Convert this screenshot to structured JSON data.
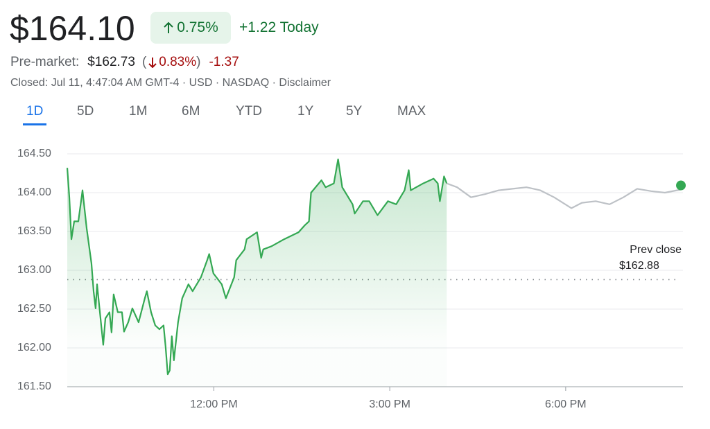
{
  "header": {
    "price": "$164.10",
    "change_pct": "0.75%",
    "change_today": "+1.22 Today",
    "premarket_label": "Pre-market:",
    "premarket_price": "$162.73",
    "premarket_pct": "0.83%",
    "premarket_change": "-1.37",
    "status": "Closed: Jul 11, 4:47:04 AM GMT-4 · USD · NASDAQ · Disclaimer"
  },
  "tabs": [
    "1D",
    "5D",
    "1M",
    "6M",
    "YTD",
    "1Y",
    "5Y",
    "MAX"
  ],
  "chart_data": {
    "type": "line",
    "series": [
      {
        "color": "#34a853",
        "x": [
          9.5,
          9.535,
          9.571,
          9.618,
          9.689,
          9.76,
          9.831,
          9.913,
          9.949,
          9.984,
          10.008,
          10.079,
          10.114,
          10.15,
          10.22,
          10.256,
          10.291,
          10.362,
          10.433,
          10.469,
          10.539,
          10.61,
          10.717,
          10.823,
          10.858,
          10.929,
          11.0,
          11.071,
          11.142,
          11.177,
          11.213,
          11.248,
          11.283,
          11.319,
          11.39,
          11.461,
          11.567,
          11.638,
          11.78,
          11.886,
          11.921,
          11.992,
          12.134,
          12.205,
          12.346,
          12.382,
          12.524,
          12.559,
          12.736,
          12.807,
          12.843,
          12.984,
          13.197,
          13.445,
          13.551,
          13.622,
          13.657,
          13.835,
          13.906,
          14.047,
          14.118,
          14.189,
          14.366,
          14.402,
          14.543,
          14.65,
          14.791,
          14.969,
          15.11,
          15.252,
          15.323,
          15.358,
          15.571,
          15.748,
          15.819,
          15.854,
          15.925,
          15.972
        ],
        "values": [
          164.32,
          163.94,
          163.4,
          163.63,
          163.63,
          164.03,
          163.54,
          163.09,
          162.73,
          162.51,
          162.82,
          162.29,
          162.04,
          162.38,
          162.46,
          162.2,
          162.69,
          162.46,
          162.46,
          162.21,
          162.33,
          162.51,
          162.33,
          162.64,
          162.73,
          162.46,
          162.29,
          162.24,
          162.29,
          162.02,
          161.66,
          161.71,
          162.15,
          161.84,
          162.33,
          162.64,
          162.82,
          162.73,
          162.91,
          163.13,
          163.21,
          162.96,
          162.82,
          162.64,
          162.91,
          163.13,
          163.27,
          163.4,
          163.49,
          163.16,
          163.27,
          163.31,
          163.4,
          163.49,
          163.58,
          163.63,
          164.0,
          164.16,
          164.07,
          164.12,
          164.43,
          164.07,
          163.85,
          163.73,
          163.89,
          163.89,
          163.71,
          163.89,
          163.85,
          164.03,
          164.29,
          164.03,
          164.12,
          164.18,
          164.12,
          163.89,
          164.21,
          164.12
        ]
      },
      {
        "color": "#bdc1c6",
        "x": [
          15.972,
          16.149,
          16.385,
          16.622,
          16.858,
          17.094,
          17.331,
          17.567,
          17.803,
          18.099,
          18.276,
          18.512,
          18.748,
          18.984,
          19.22,
          19.457,
          19.693,
          19.965
        ],
        "values": [
          164.12,
          164.07,
          163.94,
          163.98,
          164.03,
          164.05,
          164.07,
          164.03,
          163.94,
          163.8,
          163.87,
          163.89,
          163.85,
          163.94,
          164.05,
          164.02,
          164.0,
          164.04
        ]
      }
    ],
    "xlim": [
      9.5,
      20
    ],
    "xticks": [
      {
        "value": 12,
        "label": "12:00 PM"
      },
      {
        "value": 15,
        "label": "3:00 PM"
      },
      {
        "value": 18,
        "label": "6:00 PM"
      }
    ],
    "ylim": [
      161.5,
      164.5
    ],
    "yticks": [
      {
        "value": 161.5,
        "label": "161.50"
      },
      {
        "value": 162,
        "label": "162.00"
      },
      {
        "value": 162.5,
        "label": "162.50"
      },
      {
        "value": 163,
        "label": "163.00"
      },
      {
        "value": 163.5,
        "label": "163.50"
      },
      {
        "value": 164,
        "label": "164.00"
      },
      {
        "value": 164.5,
        "label": "164.50"
      }
    ],
    "grid": true,
    "prev_close": 162.88,
    "prev_close_label": "Prev close",
    "prev_close_text": "$162.88"
  }
}
